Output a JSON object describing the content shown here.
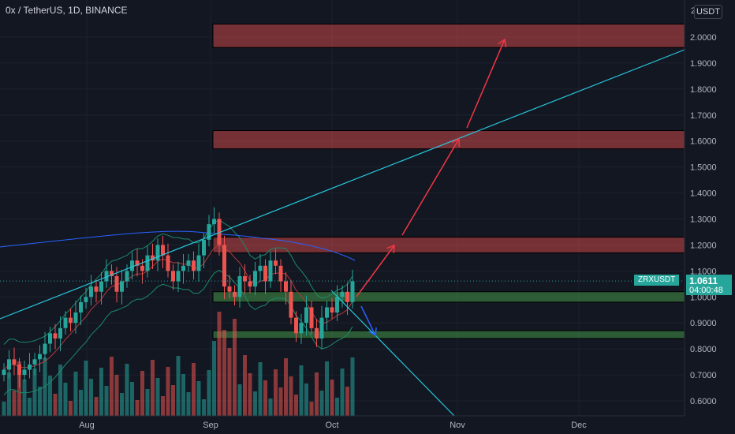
{
  "header": {
    "title": "0x / TetherUS, 1D, BINANCE"
  },
  "price_scale": {
    "currency_button": "USDT",
    "top_label": "2"
  },
  "last_price": {
    "symbol": "ZRXUSDT",
    "value": "1.0611",
    "countdown": "04:00:48",
    "color": "#26a69a"
  },
  "colors": {
    "up": "#26a69a",
    "down": "#ef5350",
    "trendline": "#26c6da",
    "resistance_zone": "#ef5350",
    "support_zone": "#4caf50",
    "background": "#131722"
  },
  "chart_data": {
    "type": "candlestick",
    "x_labels": [
      "Aug",
      "Sep",
      "Oct",
      "Nov",
      "Dec"
    ],
    "y_ticks": [
      "0.6000",
      "0.7000",
      "0.8000",
      "0.9000",
      "1.0000",
      "1.1000",
      "1.2000",
      "1.3000",
      "1.4000",
      "1.5000",
      "1.6000",
      "1.7000",
      "1.8000",
      "1.9000",
      "2.0000"
    ],
    "ylim": [
      0.55,
      2.1
    ],
    "closes": [
      0.72,
      0.76,
      0.74,
      0.7,
      0.72,
      0.74,
      0.76,
      0.78,
      0.82,
      0.86,
      0.84,
      0.88,
      0.92,
      0.9,
      0.94,
      0.98,
      1.0,
      1.04,
      1.02,
      1.06,
      1.1,
      1.08,
      1.02,
      1.06,
      1.1,
      1.14,
      1.12,
      1.1,
      1.16,
      1.14,
      1.2,
      1.16,
      1.1,
      1.06,
      1.1,
      1.12,
      1.14,
      1.1,
      1.16,
      1.22,
      1.28,
      1.3,
      1.2,
      1.04,
      1.02,
      1.0,
      1.08,
      1.06,
      1.04,
      1.1,
      1.12,
      1.06,
      1.14,
      1.12,
      1.06,
      1.02,
      0.92,
      0.86,
      0.9,
      0.96,
      0.88,
      0.84,
      0.92,
      0.96,
      0.94,
      1.0,
      1.02,
      0.98,
      1.06
    ],
    "resistance_zones": [
      [
        1.96,
        2.05
      ],
      [
        1.57,
        1.64
      ],
      [
        1.17,
        1.23
      ]
    ],
    "support_zones": [
      [
        0.98,
        1.02
      ],
      [
        0.84,
        0.87
      ]
    ]
  }
}
